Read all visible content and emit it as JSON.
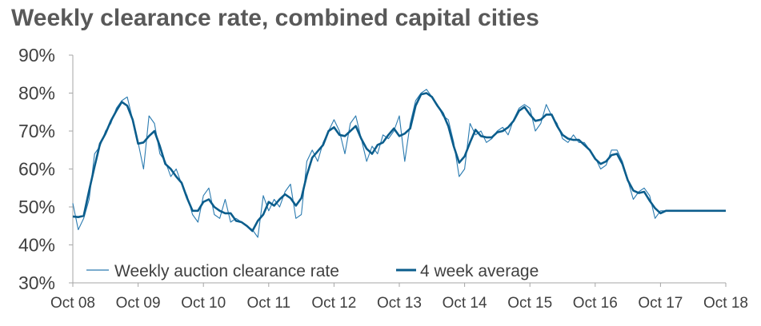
{
  "chart_data": {
    "type": "line",
    "title": "Weekly clearance rate, combined capital cities",
    "xlabel": "",
    "ylabel": "",
    "x_ticks": [
      "Oct 08",
      "Oct 09",
      "Oct 10",
      "Oct 11",
      "Oct 12",
      "Oct 13",
      "Oct 14",
      "Oct 15",
      "Oct 16",
      "Oct 17",
      "Oct 18"
    ],
    "y_ticks": [
      "30%",
      "40%",
      "50%",
      "60%",
      "70%",
      "80%",
      "90%"
    ],
    "xlim": [
      "2008-10",
      "2018-10"
    ],
    "ylim": [
      30,
      90
    ],
    "grid": false,
    "legend_position": "bottom-left",
    "colors": {
      "weekly": "#2b7bb0",
      "average": "#0b5d8c",
      "axis": "#a6a6a6",
      "title": "#595959",
      "text": "#404040"
    },
    "series": [
      {
        "name": "Weekly auction clearance rate",
        "style": "thin",
        "x": [
          "2008-10",
          "2008-11",
          "2008-12",
          "2009-01",
          "2009-02",
          "2009-03",
          "2009-04",
          "2009-05",
          "2009-06",
          "2009-07",
          "2009-08",
          "2009-09",
          "2009-10",
          "2009-11",
          "2009-12",
          "2010-01",
          "2010-02",
          "2010-03",
          "2010-04",
          "2010-05",
          "2010-06",
          "2010-07",
          "2010-08",
          "2010-09",
          "2010-10",
          "2010-11",
          "2010-12",
          "2011-01",
          "2011-02",
          "2011-03",
          "2011-04",
          "2011-05",
          "2011-06",
          "2011-07",
          "2011-08",
          "2011-09",
          "2011-10",
          "2011-11",
          "2011-12",
          "2012-01",
          "2012-02",
          "2012-03",
          "2012-04",
          "2012-05",
          "2012-06",
          "2012-07",
          "2012-08",
          "2012-09",
          "2012-10",
          "2012-11",
          "2012-12",
          "2013-01",
          "2013-02",
          "2013-03",
          "2013-04",
          "2013-05",
          "2013-06",
          "2013-07",
          "2013-08",
          "2013-09",
          "2013-10",
          "2013-11",
          "2013-12",
          "2014-01",
          "2014-02",
          "2014-03",
          "2014-04",
          "2014-05",
          "2014-06",
          "2014-07",
          "2014-08",
          "2014-09",
          "2014-10",
          "2014-11",
          "2014-12",
          "2015-01",
          "2015-02",
          "2015-03",
          "2015-04",
          "2015-05",
          "2015-06",
          "2015-07",
          "2015-08",
          "2015-09",
          "2015-10",
          "2015-11",
          "2015-12",
          "2016-01",
          "2016-02",
          "2016-03",
          "2016-04",
          "2016-05",
          "2016-06",
          "2016-07",
          "2016-08",
          "2016-09",
          "2016-10",
          "2016-11",
          "2016-12",
          "2017-01",
          "2017-02",
          "2017-03",
          "2017-04",
          "2017-05",
          "2017-06",
          "2017-07",
          "2017-08",
          "2017-09",
          "2017-10",
          "2017-11",
          "2017-12",
          "2018-01",
          "2018-02",
          "2018-03",
          "2018-04",
          "2018-05",
          "2018-06",
          "2018-07",
          "2018-08",
          "2018-09",
          "2018-10"
        ],
        "values": [
          51,
          44,
          47,
          52,
          64,
          66,
          70,
          72,
          76,
          78,
          79,
          73,
          67,
          60,
          74,
          72,
          64,
          62,
          58,
          60,
          56,
          53,
          48,
          46,
          53,
          55,
          48,
          47,
          52,
          46,
          47,
          46,
          45,
          44,
          42,
          53,
          49,
          52,
          50,
          54,
          56,
          47,
          48,
          62,
          65,
          62,
          67,
          70,
          73,
          70,
          64,
          72,
          74,
          68,
          62,
          66,
          64,
          69,
          68,
          70,
          74,
          62,
          72,
          78,
          80,
          81,
          79,
          77,
          74,
          73,
          67,
          58,
          60,
          72,
          69,
          70,
          67,
          68,
          70,
          71,
          69,
          73,
          76,
          77,
          76,
          70,
          72,
          77,
          74,
          72,
          68,
          67,
          69,
          67,
          67,
          65,
          63,
          60,
          61,
          65,
          65,
          62,
          57,
          52,
          54,
          55,
          53,
          47,
          49,
          49,
          49,
          49,
          49,
          49,
          49,
          49,
          49,
          49,
          49,
          49,
          49
        ],
        "note_points": 0
      },
      {
        "name": "4 week average",
        "style": "thick",
        "x": [],
        "values": []
      }
    ]
  },
  "legend": {
    "weekly_label": "Weekly auction clearance rate",
    "average_label": "4 week average"
  }
}
